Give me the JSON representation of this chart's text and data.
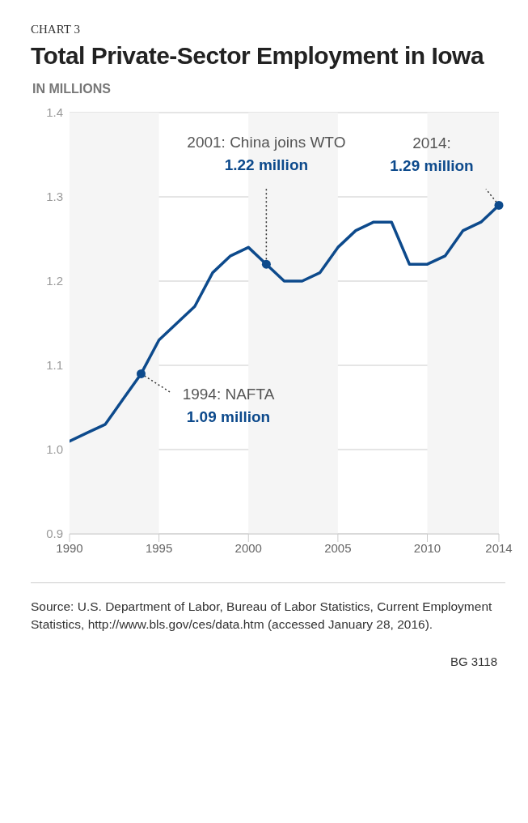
{
  "chart_data": {
    "type": "line",
    "title": "Total Private-Sector Employment in Iowa",
    "ylabel": "IN MILLIONS",
    "x": [
      1990,
      1991,
      1992,
      1993,
      1994,
      1995,
      1996,
      1997,
      1998,
      1999,
      2000,
      2001,
      2002,
      2003,
      2004,
      2005,
      2006,
      2007,
      2008,
      2009,
      2010,
      2011,
      2012,
      2013,
      2014
    ],
    "series": [
      {
        "color": "#0d4a8c",
        "values": [
          1.01,
          1.02,
          1.03,
          1.06,
          1.09,
          1.13,
          1.15,
          1.17,
          1.21,
          1.23,
          1.24,
          1.22,
          1.2,
          1.2,
          1.21,
          1.24,
          1.26,
          1.27,
          1.27,
          1.22,
          1.22,
          1.23,
          1.26,
          1.27,
          1.29
        ]
      }
    ],
    "xlim": [
      1990,
      2014
    ],
    "xticks": [
      1990,
      1995,
      2000,
      2005,
      2010,
      2014
    ],
    "ylim": [
      0.9,
      1.4
    ],
    "yticks": [
      {
        "value": 0.9,
        "label": "0.9"
      },
      {
        "value": 1,
        "label": "1.0"
      },
      {
        "value": 1.1,
        "label": "1.1"
      },
      {
        "value": 1.2,
        "label": "1.2"
      },
      {
        "value": 1.3,
        "label": "1.3"
      },
      {
        "value": 1.4,
        "label": "1.4"
      }
    ],
    "grid": "y",
    "marker": "none",
    "line_style": "solid",
    "bands": [
      {
        "axis": "x",
        "from": 1990,
        "to": 1995,
        "color": "#f5f5f5"
      },
      {
        "axis": "x",
        "from": 2000,
        "to": 2005,
        "color": "#f5f5f5"
      },
      {
        "axis": "x",
        "from": 2010,
        "to": 2014,
        "color": "#f5f5f5"
      }
    ],
    "annotations": [
      "CHART 3",
      "Source: U.S. Department of Labor, Bureau of Labor Statistics, Current Employment Statistics, http://www.bls.gov/ces/data.htm (accessed January 28, 2016).",
      "BG 3118",
      {
        "text": "1994: NAFTA\n1.09 million",
        "x": 1994,
        "y": 1.09
      },
      {
        "text": "2001: China joins WTO\n1.22 million",
        "x": 2001,
        "y": 1.22
      },
      {
        "text": "2014:\n1.29 million",
        "x": 2014,
        "y": 1.29
      }
    ]
  }
}
